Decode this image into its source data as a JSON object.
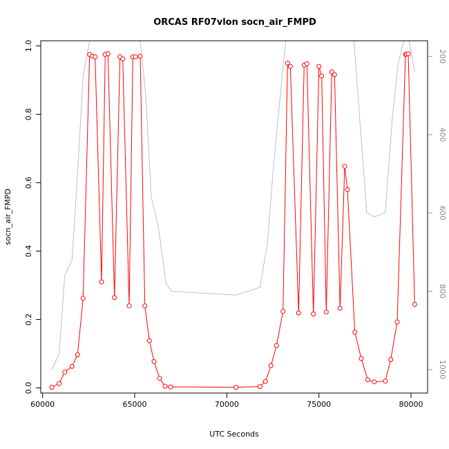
{
  "chart_data": {
    "type": "line",
    "title": "ORCAS RF07vlon socn_air_FMPD",
    "xlabel": "UTC Seconds",
    "ylabel": "socn_air_FMPD",
    "xlim": [
      59900,
      80900
    ],
    "ylim": [
      -0.015,
      1.015
    ],
    "y2lim": [
      1060,
      160
    ],
    "x_ticks": [
      60000,
      65000,
      70000,
      75000,
      80000
    ],
    "y_ticks": [
      0.0,
      0.2,
      0.4,
      0.6,
      0.8,
      1.0
    ],
    "y2_ticks": [
      200,
      400,
      600,
      800,
      1000
    ],
    "grid": false,
    "legend": "none",
    "colors": {
      "primary": "#ff0000",
      "secondary": "#bebebe",
      "axes": "#000000",
      "secondary_ticks": "#888888"
    },
    "series": [
      {
        "axis": "left",
        "style": "line+points",
        "x": [
          60500,
          60900,
          61200,
          61600,
          61900,
          62200,
          62550,
          62700,
          62850,
          63200,
          63400,
          63550,
          63900,
          64200,
          64350,
          64700,
          64900,
          65050,
          65300,
          65550,
          65800,
          66050,
          66350,
          66650,
          66950,
          70500,
          71800,
          72100,
          72400,
          72700,
          73050,
          73300,
          73450,
          73900,
          74200,
          74350,
          74700,
          75000,
          75150,
          75400,
          75700,
          75850,
          76150,
          76400,
          76550,
          76950,
          77300,
          77650,
          78000,
          78600,
          78900,
          79250,
          79700,
          79750,
          79850,
          80200
        ],
        "y": [
          0.002,
          0.013,
          0.046,
          0.063,
          0.097,
          0.262,
          0.975,
          0.97,
          0.968,
          0.31,
          0.975,
          0.977,
          0.264,
          0.968,
          0.962,
          0.24,
          0.968,
          0.968,
          0.97,
          0.24,
          0.138,
          0.077,
          0.028,
          0.005,
          0.003,
          0.002,
          0.004,
          0.019,
          0.065,
          0.124,
          0.224,
          0.95,
          0.94,
          0.219,
          0.944,
          0.948,
          0.216,
          0.94,
          0.912,
          0.222,
          0.924,
          0.916,
          0.233,
          0.648,
          0.58,
          0.163,
          0.086,
          0.024,
          0.018,
          0.02,
          0.083,
          0.193,
          0.975,
          0.976,
          0.977,
          0.244
        ]
      },
      {
        "axis": "right",
        "style": "line",
        "x": [
          60500,
          60900,
          61200,
          61600,
          61900,
          62200,
          62550,
          64000,
          65300,
          65600,
          65900,
          66300,
          66700,
          67000,
          70500,
          71800,
          72200,
          72500,
          72900,
          73200,
          74000,
          74800,
          75500,
          76000,
          76300,
          76500,
          76900,
          77600,
          78000,
          78600,
          79000,
          79300,
          79600,
          79900,
          80200
        ],
        "y": [
          1000,
          960,
          760,
          720,
          500,
          250,
          160,
          160,
          160,
          300,
          560,
          640,
          780,
          800,
          810,
          790,
          680,
          500,
          300,
          160,
          160,
          160,
          160,
          160,
          160,
          160,
          160,
          600,
          610,
          600,
          350,
          220,
          160,
          160,
          240
        ]
      }
    ]
  }
}
